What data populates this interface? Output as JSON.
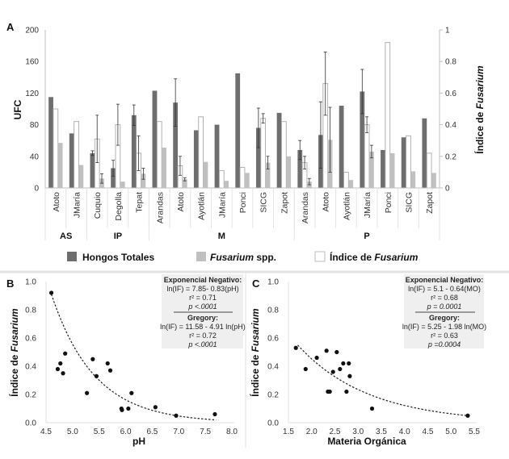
{
  "chart_data": [
    {
      "panel": "A",
      "type": "bar",
      "xlabel": "",
      "ylabel": "UFC",
      "ylabel_right": "Índice de Fusarium",
      "ylim": [
        0,
        200
      ],
      "ylim_right": [
        0,
        1
      ],
      "yticks": [
        "0",
        "40",
        "80",
        "120",
        "160",
        "200"
      ],
      "yticks_right": [
        "0",
        "0.2",
        "0.4",
        "0.6",
        "0.8",
        "1"
      ],
      "groups": [
        {
          "label": "AS",
          "categories": [
            "Atoto",
            "JMaría"
          ]
        },
        {
          "label": "IP",
          "categories": [
            "Cuquio",
            "Degolla",
            "Tepat"
          ]
        },
        {
          "label": "M",
          "categories": [
            "Arandas",
            "Atoto",
            "Ayotlán",
            "JMaría",
            "Ponci",
            "SICG",
            "Zapot"
          ]
        },
        {
          "label": "P",
          "categories": [
            "Arandas",
            "Atoto",
            "Ayotlán",
            "JMaría",
            "Ponci",
            "SICG",
            "Zapot"
          ]
        }
      ],
      "categories": [
        "Atoto",
        "JMaría",
        "Cuquio",
        "Degolla",
        "Tepat",
        "Arandas",
        "Atoto",
        "Ayotlán",
        "JMaría",
        "Ponci",
        "SICG",
        "Zapot",
        "Arandas",
        "Atoto",
        "Ayotlán",
        "JMaría",
        "Ponci",
        "SICG",
        "Zapot"
      ],
      "series": [
        {
          "name": "Hongos Totales",
          "axis": "left",
          "color": "#6e6e6e",
          "values": [
            115,
            69,
            44,
            25,
            92,
            123,
            108,
            73,
            80,
            145,
            76,
            95,
            48,
            67,
            104,
            122,
            48,
            64,
            88
          ],
          "errors": [
            null,
            null,
            3,
            10,
            13,
            null,
            30,
            null,
            null,
            null,
            25,
            null,
            12,
            42,
            null,
            28,
            null,
            null,
            null
          ]
        },
        {
          "name": "Índice de Fusarium",
          "axis": "right",
          "color": "#ffffff",
          "values": [
            0.5,
            0.42,
            0.31,
            0.4,
            0.22,
            0.42,
            0.14,
            0.45,
            0.11,
            0.13,
            0.44,
            0.42,
            0.16,
            0.66,
            0.1,
            0.4,
            0.92,
            0.33,
            0.22
          ],
          "errors": [
            null,
            null,
            0.15,
            0.13,
            0.11,
            null,
            0.06,
            null,
            null,
            null,
            0.03,
            null,
            0.04,
            0.2,
            null,
            0.05,
            null,
            null,
            null
          ]
        },
        {
          "name": "Fusarium spp.",
          "axis": "left",
          "color": "#c0c0c0",
          "values": [
            57,
            29,
            12,
            8,
            18,
            51,
            11,
            33,
            9,
            19,
            32,
            40,
            8,
            61,
            10,
            46,
            44,
            21,
            19
          ],
          "errors": [
            null,
            null,
            6,
            null,
            7,
            null,
            2,
            null,
            null,
            null,
            8,
            null,
            4,
            41,
            null,
            8,
            null,
            null,
            null
          ]
        }
      ],
      "legend": {
        "placement": "bottom",
        "items": [
          {
            "label": "Hongos Totales",
            "italic_part": "",
            "color": "#6e6e6e"
          },
          {
            "label_italic": "Fusarium",
            "label_rest": " spp.",
            "color": "#c0c0c0"
          },
          {
            "label_plain": "Índice  de ",
            "label_italic": "Fusarium",
            "color": "#ffffff"
          }
        ]
      }
    },
    {
      "panel": "B",
      "type": "scatter",
      "xlabel": "pH",
      "ylabel_plain": "Índice de ",
      "ylabel_italic": "Fusarium",
      "xlim": [
        4.5,
        8.0
      ],
      "ylim": [
        0.0,
        1.0
      ],
      "xticks": [
        "4.5",
        "5.0",
        "5.5",
        "6.0",
        "6.5",
        "7.0",
        "7.5",
        "8.0"
      ],
      "yticks": [
        "0.0",
        "0.2",
        "0.4",
        "0.6",
        "0.8",
        "1.0"
      ],
      "points": [
        [
          4.6,
          0.92
        ],
        [
          4.72,
          0.38
        ],
        [
          4.77,
          0.42
        ],
        [
          4.82,
          0.35
        ],
        [
          4.86,
          0.49
        ],
        [
          5.27,
          0.21
        ],
        [
          5.38,
          0.45
        ],
        [
          5.45,
          0.33
        ],
        [
          5.66,
          0.42
        ],
        [
          5.71,
          0.37
        ],
        [
          5.92,
          0.1
        ],
        [
          5.93,
          0.09
        ],
        [
          6.05,
          0.1
        ],
        [
          6.11,
          0.21
        ],
        [
          6.56,
          0.11
        ],
        [
          6.95,
          0.05
        ],
        [
          7.68,
          0.06
        ]
      ],
      "fit": {
        "type": "exponential",
        "a": 7.85,
        "b": 0.83,
        "scale_note": "ln(IF) curve",
        "x_range": [
          4.6,
          7.7
        ],
        "y_start": 0.91,
        "y_end": 0.02
      },
      "annotation": {
        "title1": "Exponencial Negativo:",
        "eq1": "ln(IF) =  7.85- 0.83(pH)",
        "r1": "r² = 0.71",
        "p1": "p <.0001",
        "title2": "Gregory:",
        "eq2": "ln(IF) = 11.58 - 4.91 ln(pH)",
        "r2": "r² = 0.72",
        "p2": "p <.0001"
      }
    },
    {
      "panel": "C",
      "type": "scatter",
      "xlabel": "Materia Orgánica",
      "ylabel_plain": "Índice de ",
      "ylabel_italic": "Fusarium",
      "xlim": [
        1.5,
        5.5
      ],
      "ylim": [
        0.0,
        1.0
      ],
      "xticks": [
        "1.5",
        "2.0",
        "2.5",
        "3.0",
        "3.5",
        "4.0",
        "4.5",
        "5.0",
        "5.5"
      ],
      "yticks": [
        "0.0",
        "0.2",
        "0.4",
        "0.6",
        "0.8",
        "1.0"
      ],
      "points": [
        [
          1.66,
          0.53
        ],
        [
          1.87,
          0.38
        ],
        [
          2.11,
          0.46
        ],
        [
          2.32,
          0.51
        ],
        [
          2.35,
          0.22
        ],
        [
          2.39,
          0.22
        ],
        [
          2.46,
          0.36
        ],
        [
          2.54,
          0.5
        ],
        [
          2.61,
          0.38
        ],
        [
          2.68,
          0.42
        ],
        [
          2.75,
          0.22
        ],
        [
          2.8,
          0.42
        ],
        [
          2.82,
          0.33
        ],
        [
          3.3,
          0.1
        ],
        [
          5.36,
          0.05
        ]
      ],
      "fit": {
        "type": "exponential",
        "x_range": [
          1.7,
          5.36
        ],
        "y_start": 0.55,
        "y_end": 0.05
      },
      "annotation": {
        "title1": "Exponencial Negativo:",
        "eq1": "ln(IF) =  5.1 - 0.64(MO)",
        "r1": "r² = 0.68",
        "p1": "p = 0.0001",
        "title2": "Gregory:",
        "eq2": "ln(IF) = 5.25 - 1.98 ln(MO)",
        "r2": "r² = 0.63",
        "p2": "p =0.0004"
      }
    }
  ]
}
